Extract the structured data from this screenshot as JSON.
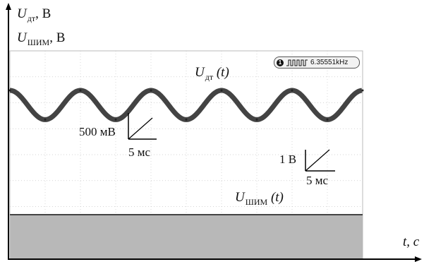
{
  "chart_data": {
    "type": "line",
    "y_axis_label": {
      "symbol": "U",
      "subscript": "дт",
      "unit": ", В"
    },
    "y_axis_label_2": {
      "symbol": "U",
      "subscript": "ШИМ",
      "unit": ", В"
    },
    "x_axis_label": "t, c",
    "series": [
      {
        "name": {
          "symbol": "U",
          "subscript": "дт",
          "arg": "(t)"
        },
        "x": [
          0,
          5,
          10,
          15,
          20,
          25,
          30,
          35,
          40,
          45,
          50
        ],
        "values": [
          2.0,
          1.6,
          2.0,
          1.6,
          2.0,
          1.6,
          2.0,
          1.6,
          2.0,
          1.6,
          2.0
        ]
      },
      {
        "name": {
          "symbol": "U",
          "subscript": "ШИМ",
          "arg": "(t)"
        },
        "x": [
          0,
          50
        ],
        "values": [
          0.3,
          0.3
        ]
      }
    ],
    "scale_marker_1": {
      "vertical": "500 мВ",
      "horizontal": "5 мс"
    },
    "scale_marker_2": {
      "vertical": "1 В",
      "horizontal": "5 мс"
    },
    "frequency_readout": "6.35551kHz",
    "grid": true
  },
  "colors": {
    "trace": "#222222",
    "pwm_fill": "#b8b8b8",
    "grid": "#c8c8c8"
  }
}
